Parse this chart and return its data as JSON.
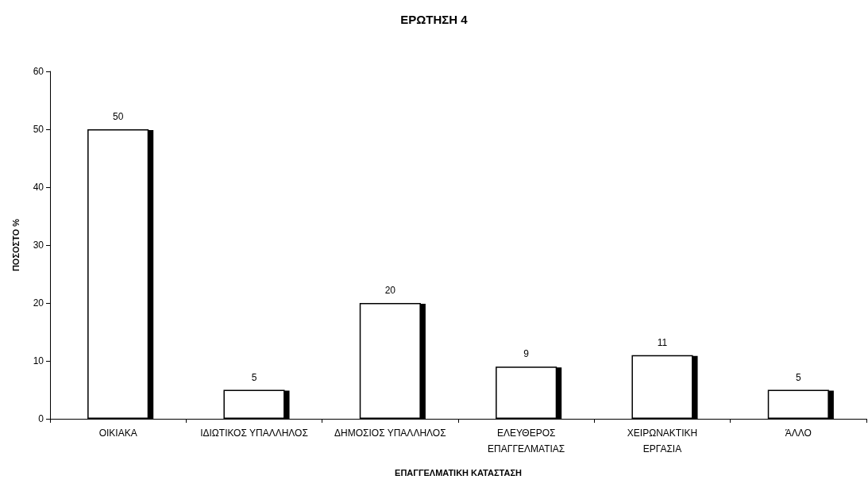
{
  "chart_data": {
    "type": "bar",
    "title": "ΕΡΩΤΗΣΗ 4",
    "xlabel": "ΕΠΑΓΓΕΛΜΑΤΙΚΗ ΚΑΤΑΣΤΑΣΗ",
    "ylabel": "ΠΟΣΟΣΤΟ %",
    "categories": [
      "ΟΙΚΙΑΚΑ",
      "ΙΔΙΩΤΙΚΟΣ ΥΠΑΛΛΗΛΟΣ",
      "ΔΗΜΟΣΙΟΣ ΥΠΑΛΛΗΛΟΣ",
      "ΕΛΕΥΘΕΡΟΣ\nΕΠΑΓΓΕΛΜΑΤΙΑΣ",
      "ΧΕΙΡΩΝΑΚΤΙΚΗ\nΕΡΓΑΣΙΑ",
      "ΆΛΛΟ"
    ],
    "values": [
      50,
      5,
      20,
      9,
      11,
      5
    ],
    "color": "#ffffff",
    "ylim": [
      0,
      60
    ],
    "yticks": [
      0,
      10,
      20,
      30,
      40,
      50,
      60
    ],
    "grid": false,
    "data_labels": true
  }
}
